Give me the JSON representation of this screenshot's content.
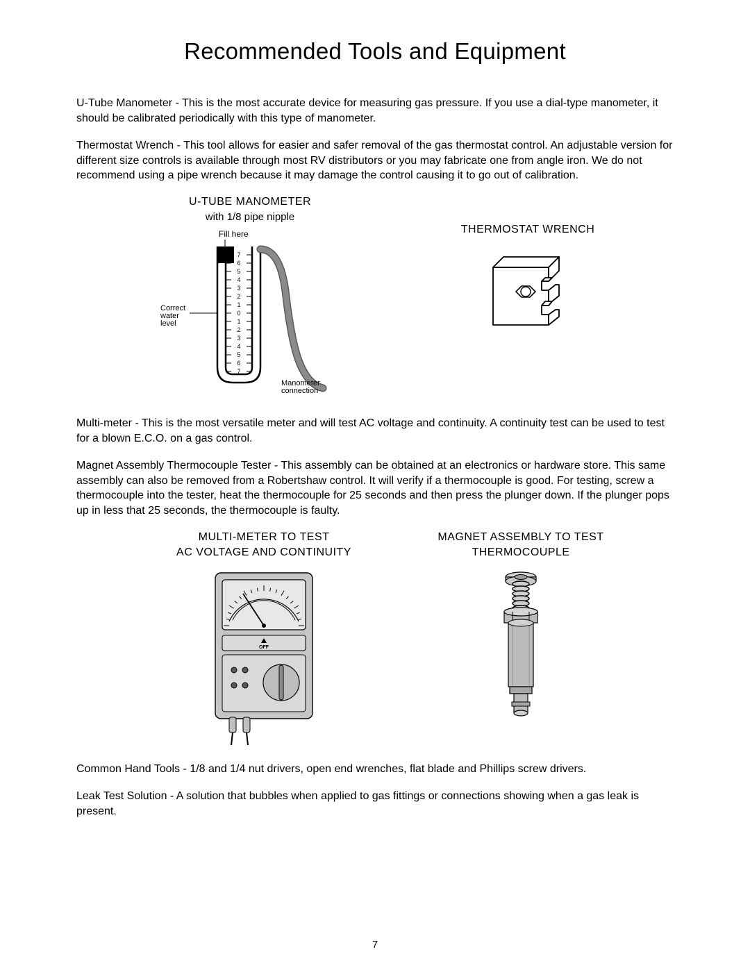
{
  "title": "Recommended Tools and Equipment",
  "para1": "U-Tube Manometer   - This is the most accurate device for measuring gas pressure. If you use a dial-type manometer, it should be calibrated periodically with this type of manometer.",
  "para2": "Thermostat Wrench   - This tool allows for easier and safer removal of the gas thermostat control. An adjustable version for different size controls is available through most RV distributors or you may fabricate one from angle iron. We do not recommend using a pipe wrench because it may damage the control causing it to go out of calibration.",
  "fig1_title": "U-TUBE MANOMETER",
  "fig1_sub": "with 1/8  pipe nipple",
  "fig1_fillHere": "Fill here",
  "fig1_correct": "Correct\nwater\nlevel",
  "fig1_conn": "Manometer\nconnection",
  "fig1_scale": [
    "7",
    "6",
    "5",
    "4",
    "3",
    "2",
    "1",
    "0",
    "1",
    "2",
    "3",
    "4",
    "5",
    "6",
    "7"
  ],
  "fig2_title": "THERMOSTAT WRENCH",
  "para3": "Multi-meter   - This is the most versatile meter and will test AC voltage and continuity. A continuity test can be used to test for a blown E.C.O. on a gas control.",
  "para4": "Magnet Assembly Thermocouple Tester     - This assembly can be obtained at an electronics or hardware store. This same assembly can also be removed from a Robertshaw control. It will verify if a thermocouple is good. For testing, screw a thermocouple into the tester, heat the thermocouple for 25 seconds and then press the plunger down. If the plunger pops up in less that 25 seconds, the thermocouple is faulty.",
  "fig3_title1": "MULTI-METER TO TEST",
  "fig3_title2": "AC VOLTAGE AND CONTINUITY",
  "fig3_off": "OFF",
  "fig4_title1": "MAGNET ASSEMBLY TO TEST",
  "fig4_title2": "THERMOCOUPLE",
  "para5": "Common Hand Tools   - 1/8   and 1/4   nut drivers, open end wrenches, flat blade and Phillips screw drivers.",
  "para6": "Leak Test Solution   - A solution that bubbles when applied to gas fittings or connections showing when a gas leak is present.",
  "page_num": "7",
  "colors": {
    "ink": "#000000",
    "lightGray": "#d3d3d3",
    "midGray": "#bfbfbf",
    "darkGray": "#8b8b8b",
    "darkerGray": "#6c6c6c",
    "hoseGray": "#777777"
  }
}
